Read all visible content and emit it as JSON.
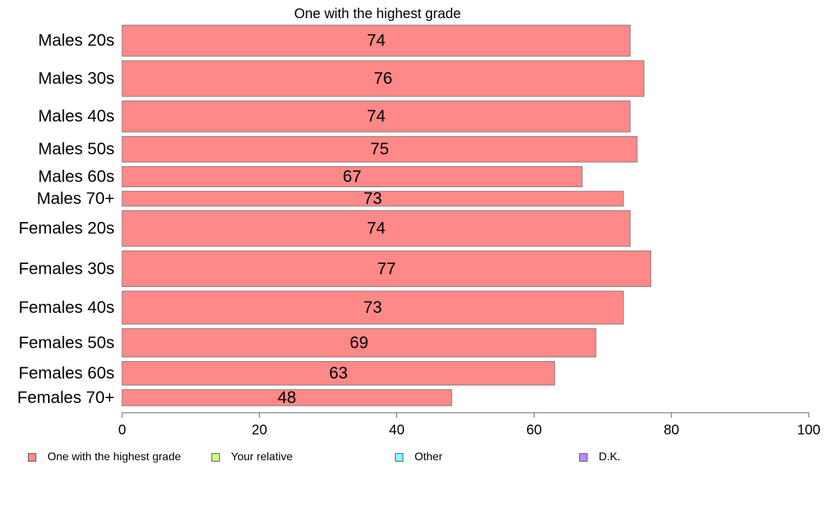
{
  "chart_data": {
    "type": "bar",
    "orientation": "horizontal",
    "title": "One with the highest grade",
    "categories": [
      "Males 20s",
      "Males 30s",
      "Males 40s",
      "Males 50s",
      "Males 60s",
      "Males 70+",
      "Females 20s",
      "Females 30s",
      "Females 40s",
      "Females 50s",
      "Females 60s",
      "Females 70+"
    ],
    "relative_widths": [
      46,
      53,
      46,
      38,
      30,
      22,
      53,
      53,
      49,
      42,
      35,
      24
    ],
    "series": [
      {
        "name": "One with the highest grade",
        "values": [
          74,
          76,
          74,
          75,
          67,
          73,
          74,
          77,
          73,
          69,
          63,
          48
        ],
        "color": "#ff8888"
      }
    ],
    "data_labels": [
      "74",
      "76",
      "74",
      "75",
      "67",
      "73",
      "74",
      "77",
      "73",
      "69",
      "63",
      "48"
    ],
    "xlim": [
      0,
      100
    ],
    "xticks": [
      0,
      20,
      40,
      60,
      80,
      100
    ],
    "xlabel": "",
    "ylabel": "",
    "grid": false,
    "legend_position": "bottom"
  },
  "legend": {
    "items": [
      {
        "label": "One with the highest grade",
        "color": "#ff8888"
      },
      {
        "label": "Your relative",
        "color": "#ccff88"
      },
      {
        "label": "Other",
        "color": "#88ffff"
      },
      {
        "label": "D.K.",
        "color": "#bb88ff"
      }
    ]
  }
}
